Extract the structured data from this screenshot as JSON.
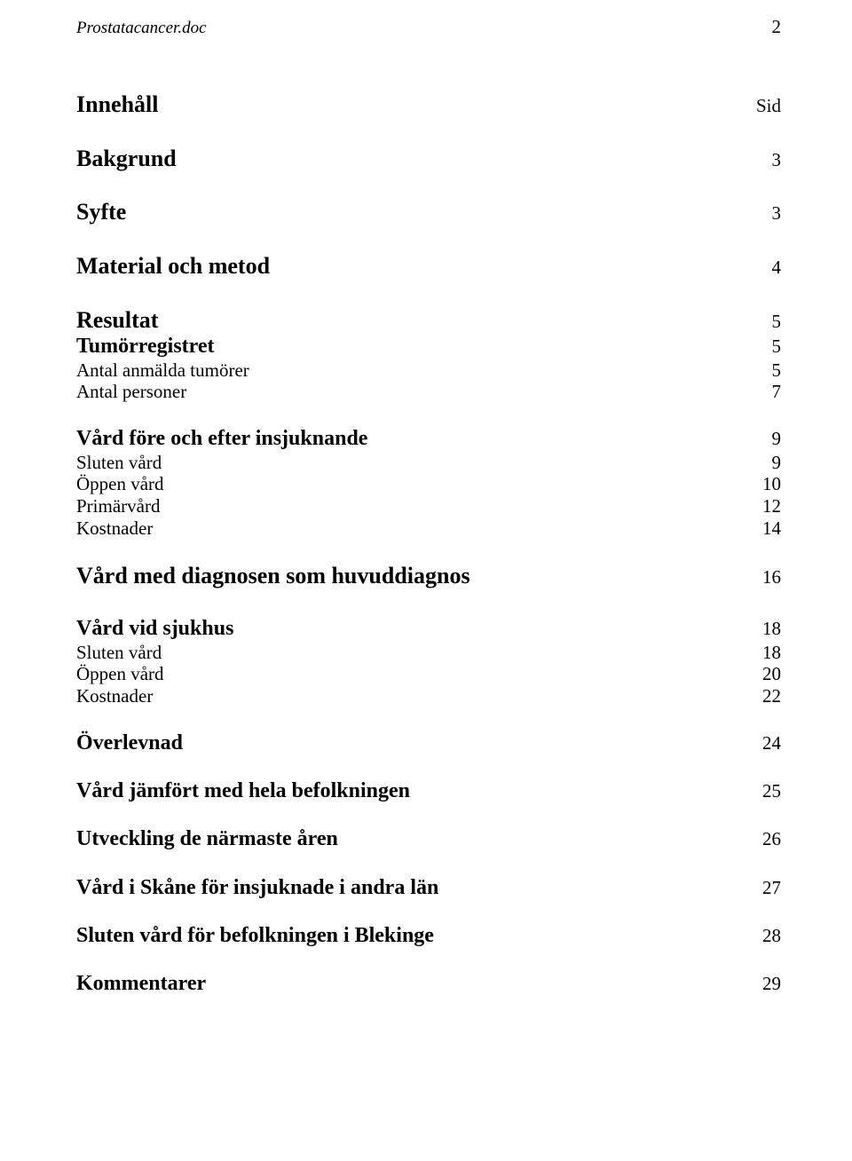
{
  "header": {
    "filename": "Prostatacancer.doc",
    "page_number": "2"
  },
  "toc": {
    "rows": [
      {
        "label": "Innehåll",
        "page": "Sid",
        "bold": true,
        "size": 26,
        "space_after": 30
      },
      {
        "label": "Bakgrund",
        "page": "3",
        "bold": true,
        "size": 26,
        "space_after": 30
      },
      {
        "label": "Syfte",
        "page": "3",
        "bold": true,
        "size": 26,
        "space_after": 30
      },
      {
        "label": "Material och metod",
        "page": "4",
        "bold": true,
        "size": 26,
        "space_after": 30
      },
      {
        "label": "Resultat",
        "page": "5",
        "bold": true,
        "size": 26,
        "space_after": 0
      },
      {
        "label": "Tumörregistret",
        "page": "5",
        "bold": true,
        "size": 24,
        "space_after": 0
      },
      {
        "label": "Antal anmälda tumörer",
        "page": "5",
        "bold": false,
        "size": 21,
        "space_after": 0
      },
      {
        "label": "Antal personer",
        "page": "7",
        "bold": false,
        "size": 21,
        "space_after": 26
      },
      {
        "label": "Vård före och efter insjuknande",
        "page": "9",
        "bold": true,
        "size": 24,
        "space_after": 0
      },
      {
        "label": "Sluten vård",
        "page": "9",
        "bold": false,
        "size": 21,
        "space_after": 0
      },
      {
        "label": "Öppen vård",
        "page": "10",
        "bold": false,
        "size": 21,
        "space_after": 0
      },
      {
        "label": "Primärvård",
        "page": "12",
        "bold": false,
        "size": 21,
        "space_after": 0
      },
      {
        "label": "Kostnader",
        "page": "14",
        "bold": false,
        "size": 21,
        "space_after": 26
      },
      {
        "label": "Vård med diagnosen som huvuddiagnos",
        "page": "16",
        "bold": true,
        "size": 26,
        "space_after": 30
      },
      {
        "label": "Vård vid sjukhus",
        "page": "18",
        "bold": true,
        "size": 24,
        "space_after": 0
      },
      {
        "label": "Sluten vård",
        "page": "18",
        "bold": false,
        "size": 21,
        "space_after": 0
      },
      {
        "label": "Öppen vård",
        "page": "20",
        "bold": false,
        "size": 21,
        "space_after": 0
      },
      {
        "label": "Kostnader",
        "page": "22",
        "bold": false,
        "size": 21,
        "space_after": 26
      },
      {
        "label": "Överlevnad",
        "page": "24",
        "bold": true,
        "size": 24,
        "space_after": 26
      },
      {
        "label": "Vård jämfört med hela befolkningen",
        "page": "25",
        "bold": true,
        "size": 24,
        "space_after": 26
      },
      {
        "label": "Utveckling de närmaste åren",
        "page": "26",
        "bold": true,
        "size": 24,
        "space_after": 26
      },
      {
        "label": "Vård i Skåne för insjuknade i andra län",
        "page": "27",
        "bold": true,
        "size": 24,
        "space_after": 26
      },
      {
        "label": "Sluten vård för befolkningen i Blekinge",
        "page": "28",
        "bold": true,
        "size": 24,
        "space_after": 26
      },
      {
        "label": "Kommentarer",
        "page": "29",
        "bold": true,
        "size": 24,
        "space_after": 0
      }
    ]
  }
}
